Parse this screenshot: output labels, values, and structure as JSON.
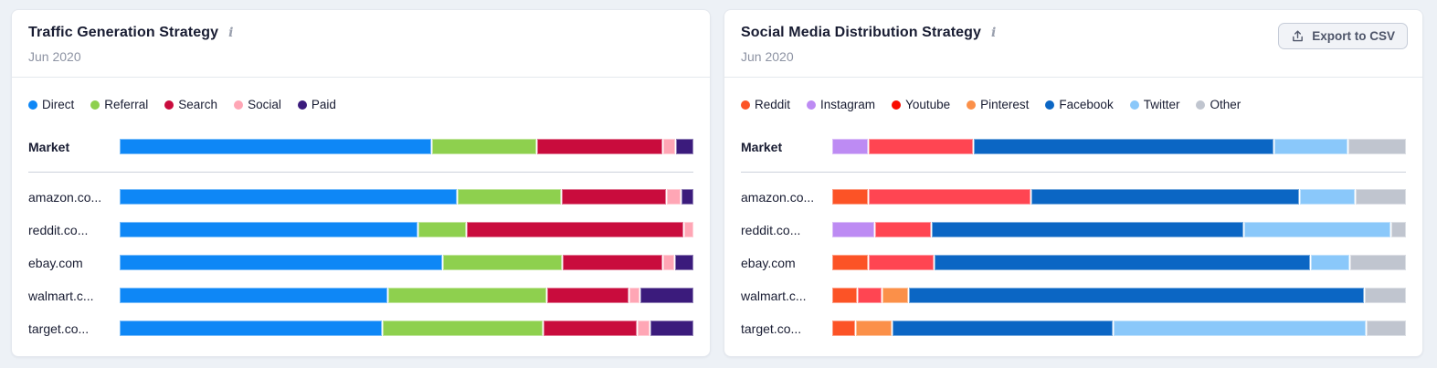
{
  "page": {
    "background": "#edf1f6"
  },
  "panels": [
    {
      "title": "Traffic Generation Strategy",
      "subtitle": "Jun 2020",
      "info_icon": "i"
    },
    {
      "title": "Social Media Distribution Strategy",
      "subtitle": "Jun 2020",
      "info_icon": "i",
      "export_button": {
        "label": "Export to CSV",
        "icon": "upload-icon"
      }
    }
  ],
  "chart_data": [
    {
      "type": "bar",
      "variant": "stacked-horizontal-percent",
      "title": "Traffic Generation Strategy",
      "period": "Jun 2020",
      "unit": "percent",
      "xlim": [
        0,
        100
      ],
      "legend_position": "top",
      "grid": false,
      "categories": [
        "Market",
        "amazon.co...",
        "reddit.co...",
        "ebay.com",
        "walmart.c...",
        "target.co..."
      ],
      "series": [
        {
          "name": "Direct",
          "color": "#0e87f6",
          "values": [
            55.2,
            59.8,
            52.5,
            57.1,
            47.4,
            46.4
          ]
        },
        {
          "name": "Referral",
          "color": "#8ed04e",
          "values": [
            18.2,
            18.0,
            8.1,
            20.9,
            27.8,
            28.2
          ]
        },
        {
          "name": "Search",
          "color": "#c90c3d",
          "values": [
            22.0,
            18.3,
            38.1,
            17.4,
            14.2,
            16.3
          ]
        },
        {
          "name": "Social",
          "color": "#ffa6b5",
          "values": [
            1.8,
            2.1,
            1.3,
            1.7,
            1.4,
            1.7
          ]
        },
        {
          "name": "Paid",
          "color": "#3b1b7c",
          "values": [
            2.8,
            1.8,
            0,
            2.9,
            9.2,
            7.4
          ]
        }
      ]
    },
    {
      "type": "bar",
      "variant": "stacked-horizontal-percent",
      "title": "Social Media Distribution Strategy",
      "period": "Jun 2020",
      "unit": "percent",
      "xlim": [
        0,
        100
      ],
      "legend_position": "top",
      "grid": false,
      "categories": [
        "Market",
        "amazon.co...",
        "reddit.co...",
        "ebay.com",
        "walmart.c...",
        "target.co..."
      ],
      "series": [
        {
          "name": "Reddit",
          "color": "#fc5326",
          "values": [
            0,
            6.1,
            0,
            6.1,
            4.0,
            3.7
          ]
        },
        {
          "name": "Instagram",
          "color": "#bd8bf3",
          "values": [
            6.1,
            0,
            7.2,
            0,
            0,
            0
          ]
        },
        {
          "name": "Youtube",
          "color": "#f90b00",
          "bar_color": "#ff4552",
          "values": [
            18.1,
            28.4,
            9.5,
            11.2,
            3.9,
            0
          ]
        },
        {
          "name": "Pinterest",
          "color": "#fb9049",
          "values": [
            0,
            0,
            0,
            0,
            4.3,
            6.1
          ]
        },
        {
          "name": "Facebook",
          "color": "#0b66c4",
          "values": [
            53.2,
            47.5,
            55.3,
            66.5,
            80.8,
            38.9
          ]
        },
        {
          "name": "Twitter",
          "color": "#8ac8fa",
          "values": [
            12.7,
            9.3,
            25.8,
            6.6,
            0,
            44.6
          ]
        },
        {
          "name": "Other",
          "color": "#c0c5cf",
          "values": [
            9.9,
            8.7,
            2.2,
            9.6,
            7.0,
            6.7
          ]
        }
      ]
    }
  ]
}
